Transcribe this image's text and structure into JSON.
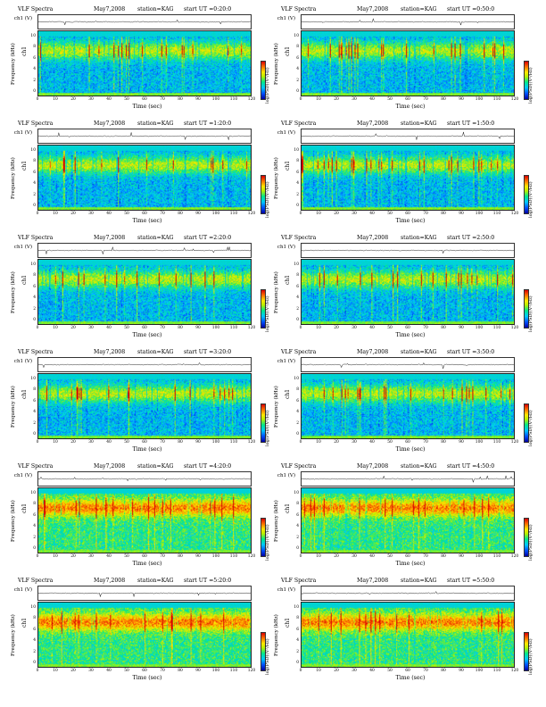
{
  "header": {
    "title": "VLF Spectra",
    "date": "May7,2008",
    "station": "station=KAG"
  },
  "panels": [
    {
      "start_ut": "start UT =0:20:0",
      "ch_label": "ch1",
      "freq_label": "Frequency (kHz)"
    },
    {
      "start_ut": "start UT =0:50:0",
      "ch_label": "ch1",
      "freq_label": "Frequency (kHz)"
    },
    {
      "start_ut": "start UT =1:20:0",
      "ch_label": "ch1",
      "freq_label": "Frequency (kHz)"
    },
    {
      "start_ut": "start UT =1:50:0",
      "ch_label": "ch1",
      "freq_label": "Frequency (kHz)"
    },
    {
      "start_ut": "start UT =2:20:0",
      "ch_label": "ch1",
      "freq_label": "Frequency (kHz)"
    },
    {
      "start_ut": "start UT =2:50:0",
      "ch_label": "ch1",
      "freq_label": "Frequency (kHz)"
    },
    {
      "start_ut": "start UT =3:20:0",
      "ch_label": "ch1",
      "freq_label": "Frequency (kHz)"
    },
    {
      "start_ut": "start UT =3:50:0",
      "ch_label": "ch1",
      "freq_label": "Frequency (kHz)"
    },
    {
      "start_ut": "start UT =4:20:0",
      "ch_label": "ch1",
      "freq_label": "Frequency (kHz)"
    },
    {
      "start_ut": "start UT =4:50:0",
      "ch_label": "ch1",
      "freq_label": "Frequency (kHz)"
    },
    {
      "start_ut": "start UT =5:20:0",
      "ch_label": "ch1",
      "freq_label": "Frequency (kHz)"
    },
    {
      "start_ut": "start UT =5:50:0",
      "ch_label": "ch1",
      "freq_label": "Frequency (kHz)"
    }
  ],
  "axes": {
    "time_label": "Time (sec)",
    "time_ticks": [
      "0",
      "10",
      "20",
      "30",
      "40",
      "50",
      "60",
      "70",
      "80",
      "90",
      "100",
      "110",
      "120"
    ],
    "freq_ticks": [
      "0",
      "2",
      "4",
      "6",
      "8",
      "10"
    ],
    "ts_label": "ch1 (V)",
    "ts_ticks": [
      "0.20",
      "0.00",
      "-0.20"
    ],
    "colorbar_label": "log(PSD)(V²/Hz)"
  },
  "colors": {
    "low": "#0000a0",
    "mid": "#00e88c",
    "high": "#d80000"
  }
}
